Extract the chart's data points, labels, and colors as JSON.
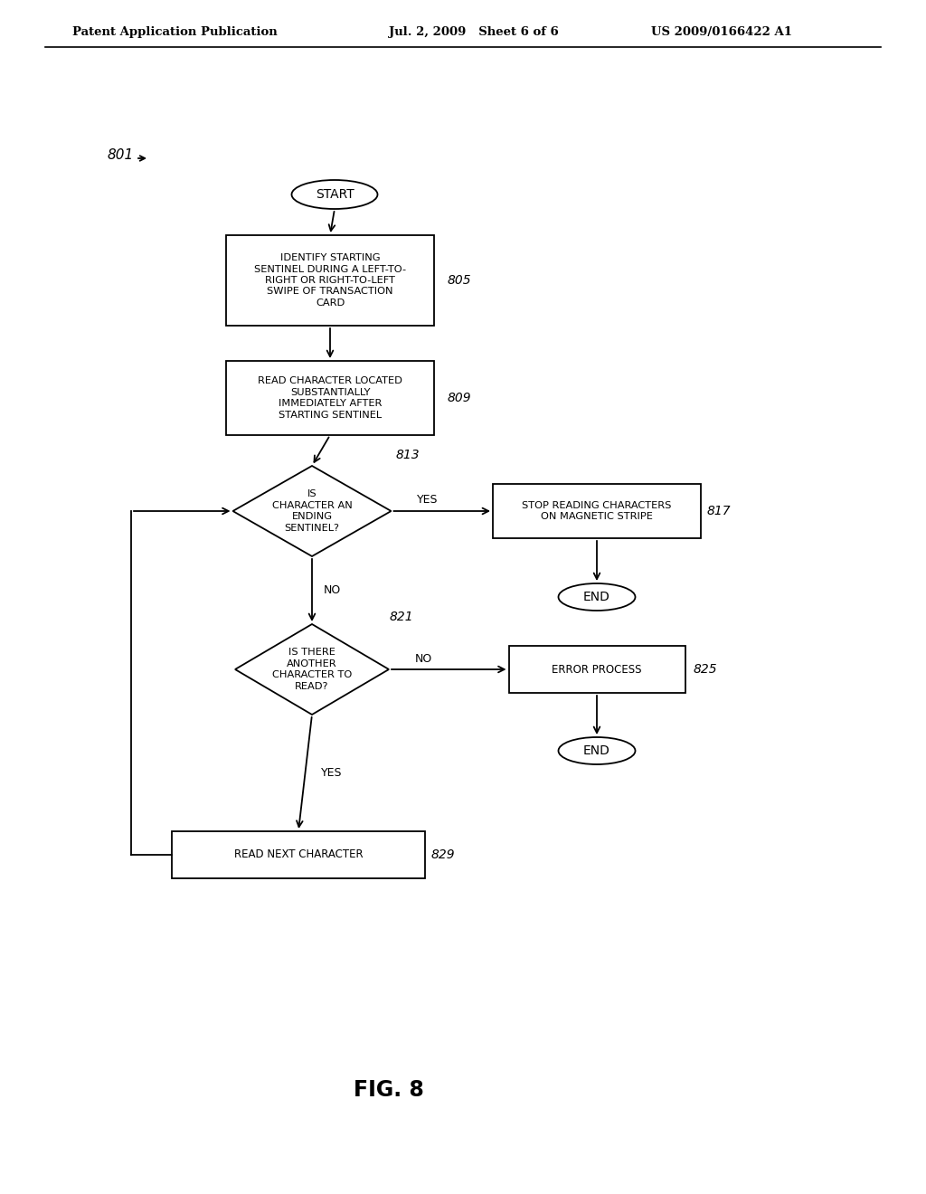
{
  "bg_color": "#ffffff",
  "header_left": "Patent Application Publication",
  "header_mid": "Jul. 2, 2009   Sheet 6 of 6",
  "header_right": "US 2009/0166422 A1",
  "fig_label": "FIG. 8",
  "diagram_label": "801",
  "start_text": "START",
  "box805_text": "IDENTIFY STARTING\nSENTINEL DURING A LEFT-TO-\nRIGHT OR RIGHT-TO-LEFT\nSWIPE OF TRANSACTION\nCARD",
  "box805_label": "805",
  "box809_text": "READ CHARACTER LOCATED\nSUBSTANTIALLY\nIMMEDIATELY AFTER\nSTARTING SENTINEL",
  "box809_label": "809",
  "d813_text": "IS\nCHARACTER AN\nENDING\nSENTINEL?",
  "d813_label": "813",
  "box817_text": "STOP READING CHARACTERS\nON MAGNETIC STRIPE",
  "box817_label": "817",
  "end1_text": "END",
  "d821_text": "IS THERE\nANOTHER\nCHARACTER TO\nREAD?",
  "d821_label": "821",
  "box825_text": "ERROR PROCESS",
  "box825_label": "825",
  "end2_text": "END",
  "box829_text": "READ NEXT CHARACTER",
  "box829_label": "829",
  "yes_label": "YES",
  "no_label": "NO"
}
